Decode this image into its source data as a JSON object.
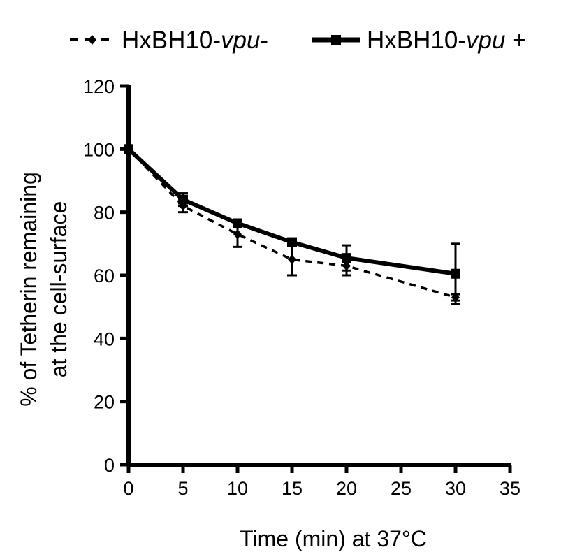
{
  "chart_data": {
    "type": "line",
    "xlabel": "Time (min) at 37°C",
    "ylabel_line1": "% of Tetherin remaining",
    "ylabel_line2": "at the cell-surface",
    "xlim": [
      0,
      35
    ],
    "ylim": [
      0,
      120
    ],
    "xticks": [
      "0",
      "5",
      "10",
      "15",
      "20",
      "25",
      "30",
      "35"
    ],
    "yticks": [
      "0",
      "20",
      "40",
      "60",
      "80",
      "100",
      "120"
    ],
    "grid": false,
    "legend_position": "top",
    "series": [
      {
        "name_prefix": "HxBH10-",
        "name_italic": "vpu",
        "name_suffix": "-",
        "line_style": "dashed",
        "marker": "diamond",
        "x": [
          0,
          5,
          10,
          15,
          20,
          30
        ],
        "y": [
          100,
          82,
          73,
          65,
          63,
          53
        ],
        "err": [
          0,
          2,
          4,
          5,
          3,
          1
        ]
      },
      {
        "name_prefix": "HxBH10-",
        "name_italic": "vpu",
        "name_suffix": " +",
        "line_style": "solid",
        "marker": "square",
        "x": [
          0,
          5,
          10,
          15,
          20,
          30
        ],
        "y": [
          100,
          84,
          76.5,
          70.5,
          65.5,
          60.5
        ],
        "err": [
          0,
          2,
          1,
          1,
          4,
          9.5
        ]
      }
    ]
  }
}
